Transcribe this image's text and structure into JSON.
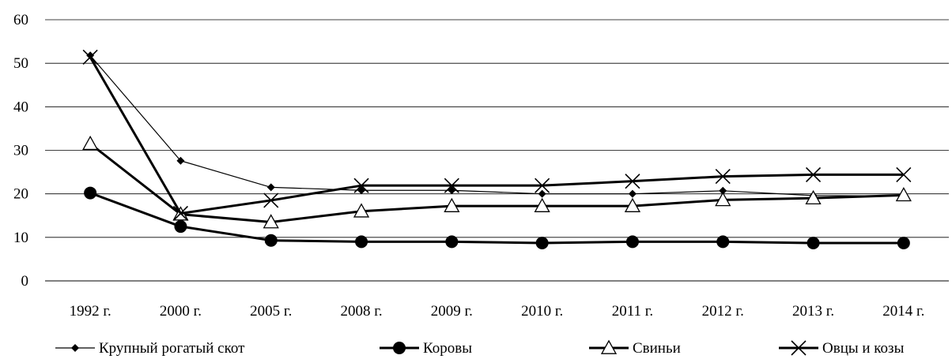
{
  "chart_data": {
    "type": "line",
    "title": "",
    "xlabel": "",
    "ylabel": "",
    "categories": [
      "1992 г.",
      "2000 г.",
      "2005 г.",
      "2008 г.",
      "2009 г.",
      "2010 г.",
      "2011 г.",
      "2012 г.",
      "2013 г.",
      "2014 г."
    ],
    "ylim": [
      0,
      60
    ],
    "yticks": [
      "0",
      "10",
      "20",
      "30",
      "40",
      "50",
      "60"
    ],
    "grid": "horizontal",
    "legend_position": "bottom",
    "series": [
      {
        "name": "Крупный рогатый скот",
        "marker": "diamond",
        "color": "#000000",
        "values": [
          51.8,
          27.6,
          21.5,
          20.8,
          20.8,
          20.0,
          20.0,
          20.7,
          19.6,
          19.5
        ]
      },
      {
        "name": "Коровы",
        "marker": "circle",
        "color": "#000000",
        "values": [
          20.2,
          12.5,
          9.3,
          9.0,
          9.0,
          8.7,
          9.0,
          9.0,
          8.7,
          8.7
        ]
      },
      {
        "name": "Свиньи",
        "marker": "triangle",
        "color": "#000000",
        "values": [
          31.5,
          15.3,
          13.5,
          16.0,
          17.2,
          17.2,
          17.2,
          18.6,
          19.0,
          19.7
        ]
      },
      {
        "name": "Овцы и козы",
        "marker": "cross",
        "color": "#000000",
        "values": [
          51.4,
          15.5,
          18.5,
          21.9,
          21.9,
          21.9,
          22.9,
          24.0,
          24.4,
          24.4
        ]
      }
    ]
  }
}
